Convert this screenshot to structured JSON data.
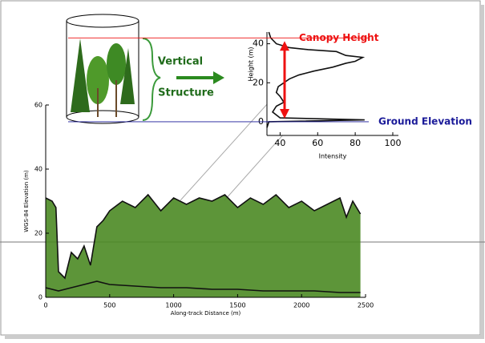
{
  "chart_data": [
    {
      "type": "line",
      "xlabel": "Along-track Distance (m)",
      "ylabel": "WGS-84 Elevation (m)",
      "xlim": [
        0,
        2500
      ],
      "ylim": [
        0,
        60
      ],
      "xticks": [
        0,
        500,
        1000,
        1500,
        2000,
        2500
      ],
      "yticks": [
        0,
        20,
        40,
        60
      ],
      "series": [
        {
          "color": "#111111",
          "fill": "#4b8a23",
          "x": [
            0,
            50,
            80,
            100,
            150,
            200,
            250,
            300,
            350,
            400,
            450,
            500,
            600,
            700,
            800,
            900,
            1000,
            1100,
            1200,
            1300,
            1400,
            1500,
            1600,
            1700,
            1800,
            1900,
            2000,
            2100,
            2200,
            2300,
            2350,
            2400,
            2460
          ],
          "values": [
            31,
            30,
            28,
            8,
            6,
            14,
            12,
            16,
            10,
            22,
            24,
            27,
            30,
            28,
            32,
            27,
            31,
            29,
            31,
            30,
            32,
            28,
            31,
            29,
            32,
            28,
            30,
            27,
            29,
            31,
            25,
            30,
            26
          ]
        },
        {
          "color": "#111111",
          "x": [
            0,
            100,
            200,
            300,
            400,
            500,
            700,
            900,
            1100,
            1300,
            1500,
            1700,
            1900,
            2100,
            2300,
            2460
          ],
          "values": [
            3,
            2,
            3,
            4,
            5,
            4,
            3.5,
            3,
            3,
            2.5,
            2.5,
            2,
            2,
            2,
            1.5,
            1.5
          ]
        }
      ]
    },
    {
      "type": "line",
      "xlabel": "Intensity",
      "ylabel": "Height (m)",
      "xlim": [
        33,
        103
      ],
      "ylim": [
        -7,
        46
      ],
      "xticks": [
        40,
        60,
        80,
        100
      ],
      "yticks": [
        0,
        20,
        40
      ],
      "series": [
        {
          "color": "#111111",
          "x": [
            33,
            34,
            85,
            40,
            36,
            38,
            42,
            40,
            38,
            39,
            42,
            45,
            50,
            58,
            68,
            75,
            80,
            84,
            75,
            70,
            55,
            45,
            38,
            35,
            34
          ],
          "values": [
            -3,
            0,
            1,
            2,
            5,
            8,
            10,
            13,
            15,
            18,
            20,
            22,
            24,
            26,
            28,
            30,
            31,
            33,
            34,
            36,
            37,
            38,
            40,
            43,
            46
          ]
        }
      ],
      "annotations": [
        {
          "text": "Canopy Height",
          "color": "#ee1111",
          "y": 43
        },
        {
          "text": "Ground Elevation",
          "color": "#1a1a99",
          "y": 0
        }
      ]
    }
  ],
  "illustration": {
    "labels": [
      "Vertical",
      "Structure"
    ]
  }
}
